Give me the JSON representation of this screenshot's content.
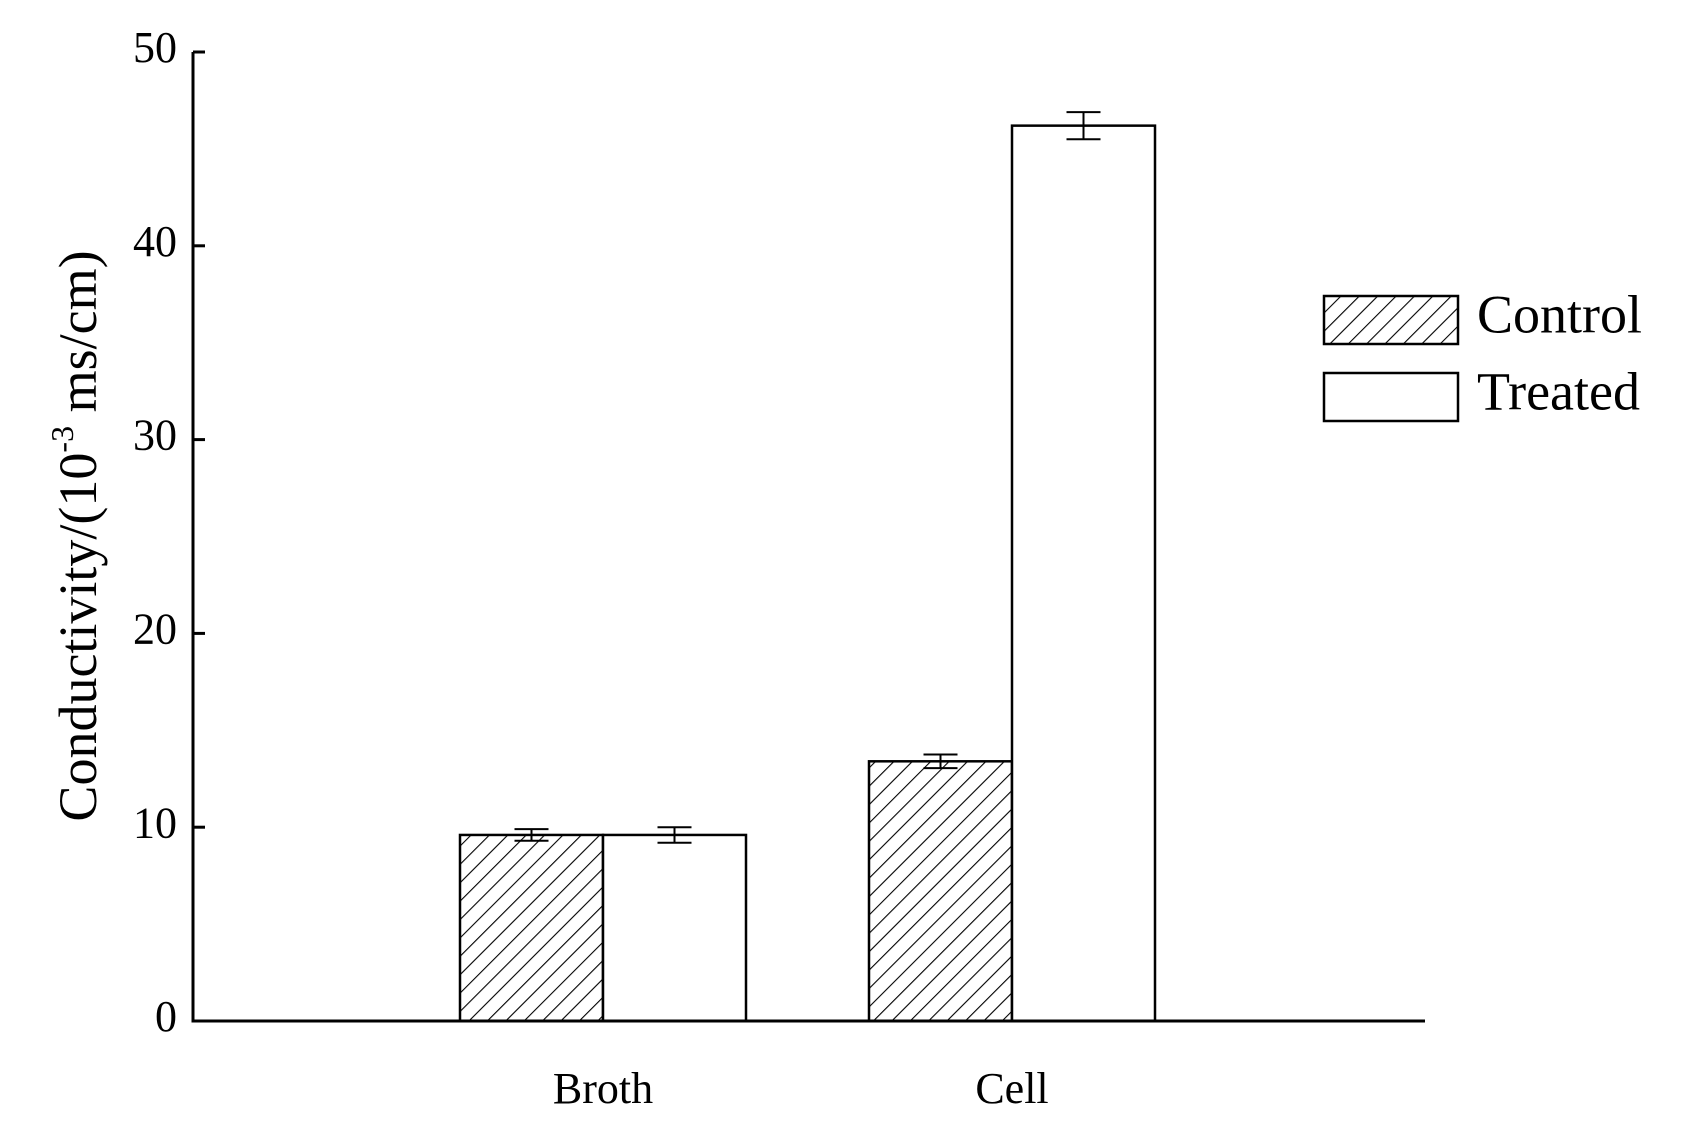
{
  "chart_data": {
    "type": "bar",
    "categories": [
      "Broth",
      "Cell"
    ],
    "series": [
      {
        "name": "Control",
        "pattern": "hatched",
        "values": [
          9.6,
          13.4
        ],
        "errors": [
          0.3,
          0.35
        ]
      },
      {
        "name": "Treated",
        "pattern": "open",
        "values": [
          9.6,
          46.2
        ],
        "errors": [
          0.4,
          0.7
        ]
      }
    ],
    "ylabel": {
      "prefix": "Conductivity/(10",
      "superscript": "-3",
      "suffix": " ms/cm)"
    },
    "xlabel": "",
    "ylim": [
      0,
      50
    ],
    "yticks": [
      "0",
      "10",
      "20",
      "30",
      "40",
      "50"
    ],
    "grid": false,
    "legend_position": "right",
    "colors": {
      "axis": "#000000",
      "bar_fill": "#ffffff",
      "hatch": "#000000"
    }
  }
}
